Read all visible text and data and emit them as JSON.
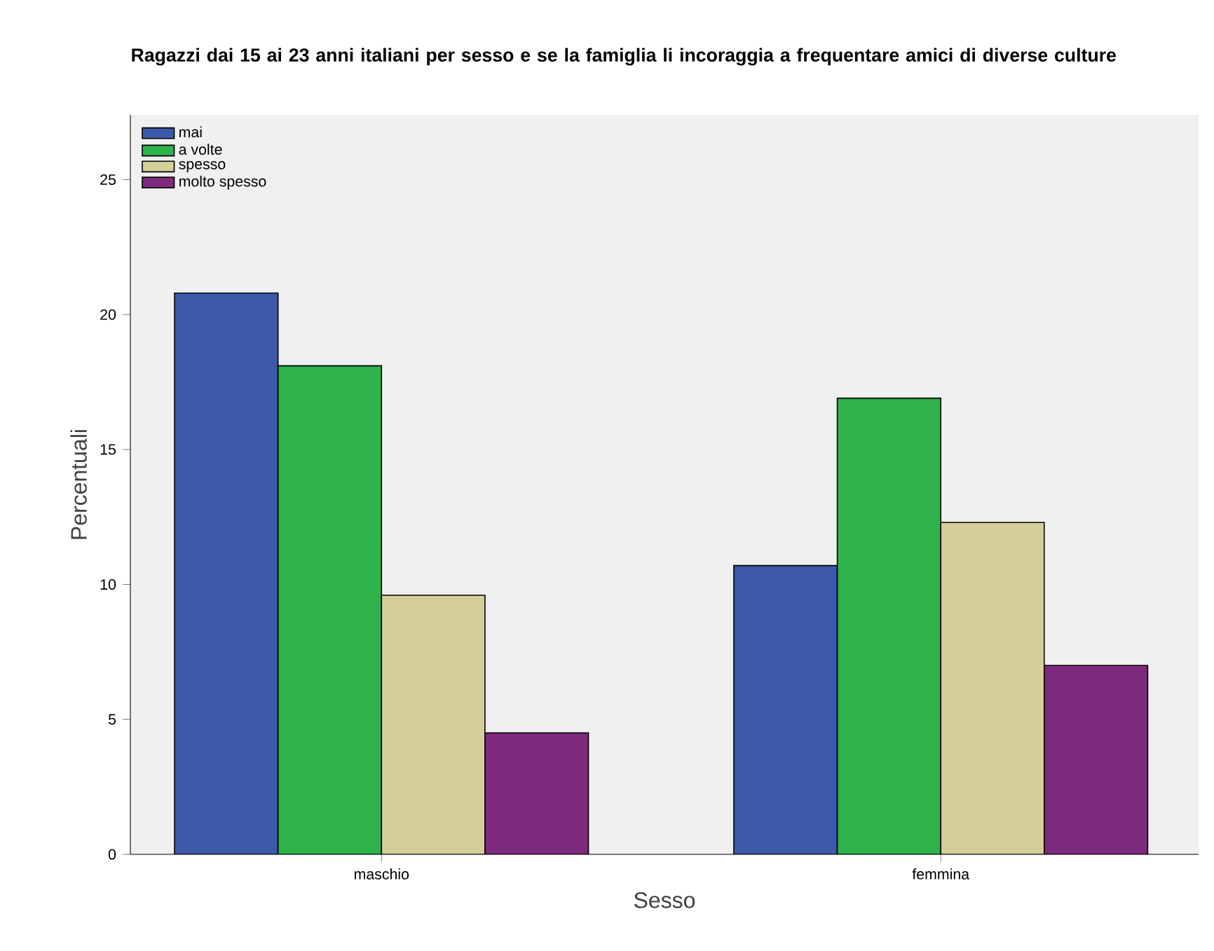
{
  "chart_data": {
    "type": "bar",
    "title": "Ragazzi dai 15 ai 23 anni italiani per sesso e se la famiglia li incoraggia a frequentare amici di diverse culture",
    "xlabel": "Sesso",
    "ylabel": "Percentuali",
    "categories": [
      "maschio",
      "femmina"
    ],
    "series": [
      {
        "name": "mai",
        "color": "#3d59ab",
        "values": [
          20.8,
          10.7
        ]
      },
      {
        "name": "a volte",
        "color": "#2db34a",
        "values": [
          18.1,
          16.9
        ]
      },
      {
        "name": "spesso",
        "color": "#d4cf98",
        "values": [
          9.6,
          12.3
        ]
      },
      {
        "name": "molto spesso",
        "color": "#7d2a7d",
        "values": [
          4.5,
          7.0
        ]
      }
    ],
    "ylim": [
      0,
      27.4
    ],
    "yticks": [
      0,
      5,
      10,
      15,
      20,
      25
    ],
    "legend": "top left"
  }
}
